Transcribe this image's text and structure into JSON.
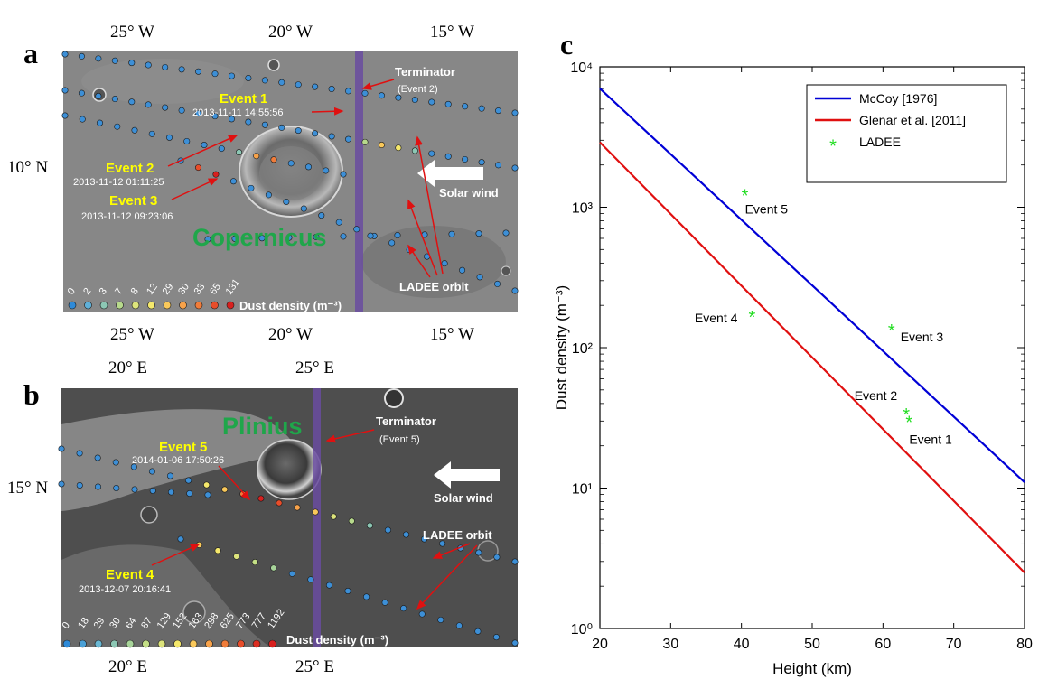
{
  "panels": {
    "a": {
      "letter": "a",
      "lon_ticks_top": [
        "25° W",
        "20° W",
        "15° W"
      ],
      "lon_ticks_bottom": [
        "25° W",
        "20° W",
        "15° W"
      ],
      "lat_tick": "10° N",
      "crater": "Copernicus",
      "terminator": "Terminator",
      "terminator_event": "(Event 2)",
      "solar_wind": "Solar wind",
      "orbit": "LADEE orbit",
      "events": [
        {
          "name": "Event 1",
          "time": "2013-11-11 14:55:56"
        },
        {
          "name": "Event 2",
          "time": "2013-11-12 01:11:25"
        },
        {
          "name": "Event 3",
          "time": "2013-11-12 09:23:06"
        }
      ],
      "scale_values": [
        "0",
        "2",
        "3",
        "7",
        "8",
        "12",
        "29",
        "30",
        "33",
        "65",
        "131"
      ],
      "scale_label": "Dust density (m⁻³)"
    },
    "b": {
      "letter": "b",
      "lon_ticks_top": [
        "20° E",
        "25° E"
      ],
      "lon_ticks_bottom": [
        "20° E",
        "25° E"
      ],
      "lat_tick": "15° N",
      "crater": "Plinius",
      "terminator": "Terminator",
      "terminator_event": "(Event 5)",
      "solar_wind": "Solar wind",
      "orbit": "LADEE orbit",
      "events": [
        {
          "name": "Event 5",
          "time": "2014-01-06 17:50:26"
        },
        {
          "name": "Event 4",
          "time": "2013-12-07 20:16:41"
        }
      ],
      "scale_values": [
        "0",
        "18",
        "29",
        "30",
        "64",
        "87",
        "129",
        "152",
        "163",
        "298",
        "625",
        "773",
        "777",
        "1192"
      ],
      "scale_label": "Dust density (m⁻³)"
    }
  },
  "colors": {
    "scale_a": [
      "#2e8ad8",
      "#5fb0d8",
      "#8cc7b4",
      "#b7d98c",
      "#dde47c",
      "#f5e86c",
      "#f9c85a",
      "#f7a24a",
      "#f07c3a",
      "#e84d2a",
      "#d8201e"
    ],
    "scale_b": [
      "#2e8ad8",
      "#4aa0d6",
      "#6ab8d4",
      "#8cc7b4",
      "#a8d49a",
      "#c4df86",
      "#dde47c",
      "#f5e86c",
      "#f9c85a",
      "#f7a24a",
      "#f07c3a",
      "#e84d2a",
      "#dc2e22",
      "#d8201e"
    ],
    "mccoy": "#0000d6",
    "glenar": "#e01010",
    "ladee": "#22dd22"
  },
  "chart_data": {
    "type": "line",
    "panel_letter": "c",
    "xlabel": "Height (km)",
    "ylabel": "Dust density (m⁻³)",
    "xlim": [
      20,
      80
    ],
    "ylim": [
      1,
      10000
    ],
    "yscale": "log",
    "x_ticks": [
      "20",
      "30",
      "40",
      "50",
      "60",
      "70",
      "80"
    ],
    "y_ticks": [
      "10⁰",
      "10¹",
      "10²",
      "10³",
      "10⁴"
    ],
    "legend_position": "top-right",
    "series": [
      {
        "name": "McCoy [1976]",
        "type": "line",
        "x": [
          20,
          80
        ],
        "y": [
          7000,
          11
        ]
      },
      {
        "name": "Glenar et al. [2011]",
        "type": "line",
        "x": [
          20,
          80
        ],
        "y": [
          2900,
          2.5
        ]
      }
    ],
    "ladee": {
      "name": "LADEE",
      "points": [
        {
          "label": "Event 5",
          "x": 40.5,
          "y": 1192
        },
        {
          "label": "Event 4",
          "x": 41.5,
          "y": 163
        },
        {
          "label": "Event 3",
          "x": 61.2,
          "y": 131
        },
        {
          "label": "Event 2",
          "x": 63.3,
          "y": 33
        },
        {
          "label": "Event 1",
          "x": 63.7,
          "y": 29
        }
      ]
    }
  }
}
